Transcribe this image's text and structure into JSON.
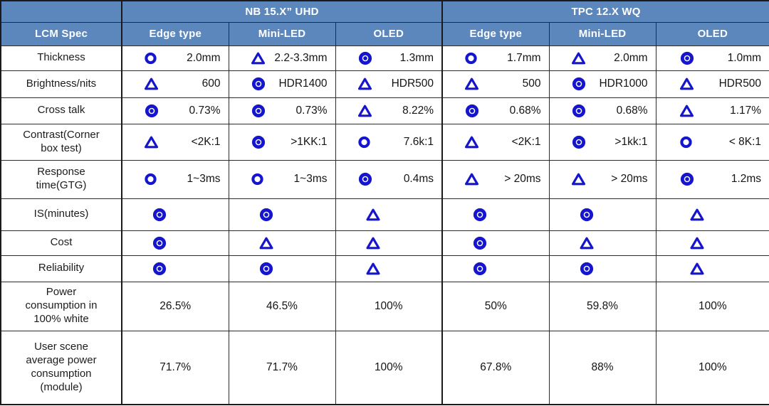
{
  "colors": {
    "header_bg": "#5b87bd",
    "header_text": "#ffffff",
    "icon_blue": "#1515cd",
    "grid_line": "#2b2b2b",
    "body_text": "#141414"
  },
  "table": {
    "spec_header": "LCM Spec",
    "groups": [
      {
        "label": "NB 15.X” UHD"
      },
      {
        "label": "TPC 12.X WQ"
      }
    ],
    "col_headers": [
      "Edge type",
      "Mini-LED",
      "OLED",
      "Edge type",
      "Mini-LED",
      "OLED"
    ],
    "rows": [
      {
        "label": "Thickness",
        "cells": [
          {
            "icon": "circle",
            "text": "2.0mm"
          },
          {
            "icon": "triangle",
            "text": "2.2-3.3mm"
          },
          {
            "icon": "bullseye",
            "text": "1.3mm"
          },
          {
            "icon": "circle",
            "text": "1.7mm"
          },
          {
            "icon": "triangle",
            "text": "2.0mm"
          },
          {
            "icon": "bullseye",
            "text": "1.0mm"
          }
        ]
      },
      {
        "label": "Brightness/nits",
        "cells": [
          {
            "icon": "triangle",
            "text": "600"
          },
          {
            "icon": "bullseye",
            "text": "HDR1400"
          },
          {
            "icon": "triangle",
            "text": "HDR500"
          },
          {
            "icon": "triangle",
            "text": "500"
          },
          {
            "icon": "bullseye",
            "text": "HDR1000"
          },
          {
            "icon": "triangle",
            "text": "HDR500"
          }
        ]
      },
      {
        "label": "Cross talk",
        "cells": [
          {
            "icon": "bullseye",
            "text": "0.73%"
          },
          {
            "icon": "bullseye",
            "text": "0.73%"
          },
          {
            "icon": "triangle",
            "text": "8.22%"
          },
          {
            "icon": "bullseye",
            "text": "0.68%"
          },
          {
            "icon": "bullseye",
            "text": "0.68%"
          },
          {
            "icon": "triangle",
            "text": "1.17%"
          }
        ]
      },
      {
        "label": "Contrast(Corner box test)",
        "cells": [
          {
            "icon": "triangle",
            "text": "<2K:1"
          },
          {
            "icon": "bullseye",
            "text": ">1KK:1"
          },
          {
            "icon": "circle",
            "text": "7.6k:1"
          },
          {
            "icon": "triangle",
            "text": "<2K:1"
          },
          {
            "icon": "bullseye",
            "text": ">1kk:1"
          },
          {
            "icon": "circle",
            "text": "< 8K:1"
          }
        ]
      },
      {
        "label": "Response time(GTG)",
        "cells": [
          {
            "icon": "circle",
            "text": "1~3ms"
          },
          {
            "icon": "circle",
            "text": "1~3ms"
          },
          {
            "icon": "bullseye",
            "text": "0.4ms"
          },
          {
            "icon": "triangle",
            "text": "> 20ms"
          },
          {
            "icon": "triangle",
            "text": "> 20ms"
          },
          {
            "icon": "bullseye",
            "text": "1.2ms"
          }
        ]
      },
      {
        "label": "IS(minutes)",
        "cells": [
          {
            "icon": "bullseye",
            "text": ""
          },
          {
            "icon": "bullseye",
            "text": ""
          },
          {
            "icon": "triangle",
            "text": ""
          },
          {
            "icon": "bullseye",
            "text": ""
          },
          {
            "icon": "bullseye",
            "text": ""
          },
          {
            "icon": "triangle",
            "text": ""
          }
        ]
      },
      {
        "label": "Cost",
        "cells": [
          {
            "icon": "bullseye",
            "text": ""
          },
          {
            "icon": "triangle",
            "text": ""
          },
          {
            "icon": "triangle",
            "text": ""
          },
          {
            "icon": "bullseye",
            "text": ""
          },
          {
            "icon": "triangle",
            "text": ""
          },
          {
            "icon": "triangle",
            "text": ""
          }
        ]
      },
      {
        "label": "Reliability",
        "cells": [
          {
            "icon": "bullseye",
            "text": ""
          },
          {
            "icon": "bullseye",
            "text": ""
          },
          {
            "icon": "triangle",
            "text": ""
          },
          {
            "icon": "bullseye",
            "text": ""
          },
          {
            "icon": "bullseye",
            "text": ""
          },
          {
            "icon": "triangle",
            "text": ""
          }
        ]
      },
      {
        "label": "Power consumption in 100% white",
        "cells": [
          {
            "icon": "",
            "text": "26.5%"
          },
          {
            "icon": "",
            "text": "46.5%"
          },
          {
            "icon": "",
            "text": "100%"
          },
          {
            "icon": "",
            "text": "50%"
          },
          {
            "icon": "",
            "text": "59.8%"
          },
          {
            "icon": "",
            "text": "100%"
          }
        ]
      },
      {
        "label": "User scene average power consumption (module)",
        "cells": [
          {
            "icon": "",
            "text": "71.7%"
          },
          {
            "icon": "",
            "text": "71.7%"
          },
          {
            "icon": "",
            "text": "100%"
          },
          {
            "icon": "",
            "text": "67.8%"
          },
          {
            "icon": "",
            "text": "88%"
          },
          {
            "icon": "",
            "text": "100%"
          }
        ]
      }
    ]
  }
}
